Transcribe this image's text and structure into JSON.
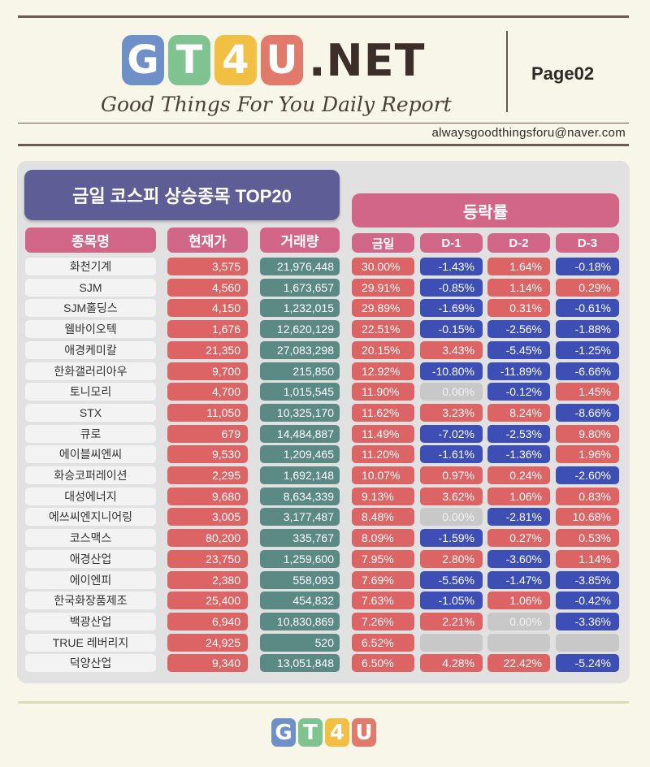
{
  "header": {
    "logo_letters": [
      {
        "char": "G",
        "color": "#6f8fc9"
      },
      {
        "char": "T",
        "color": "#7fc490"
      },
      {
        "char": "4",
        "color": "#f2bf45"
      },
      {
        "char": "U",
        "color": "#e27a6c"
      }
    ],
    "logo_suffix": ".NET",
    "subtitle": "Good Things For You Daily Report",
    "page_label": "Page02",
    "email": "alwaysgoodthingsforu@naver.com"
  },
  "table": {
    "title": "금일 코스피 상승종목 TOP20",
    "rate_header": "등락률",
    "columns": {
      "name": "종목명",
      "price": "현재가",
      "volume": "거래량",
      "d0": "금일",
      "d1": "D-1",
      "d2": "D-2",
      "d3": "D-3"
    },
    "rows": [
      {
        "name": "화천기계",
        "price": "3,575",
        "volume": "21,976,448",
        "d0": "30.00%",
        "d1": "-1.43%",
        "d2": "1.64%",
        "d3": "-0.18%"
      },
      {
        "name": "SJM",
        "price": "4,560",
        "volume": "1,673,657",
        "d0": "29.91%",
        "d1": "-0.85%",
        "d2": "1.14%",
        "d3": "0.29%"
      },
      {
        "name": "SJM홀딩스",
        "price": "4,150",
        "volume": "1,232,015",
        "d0": "29.89%",
        "d1": "-1.69%",
        "d2": "0.31%",
        "d3": "-0.61%"
      },
      {
        "name": "웰바이오텍",
        "price": "1,676",
        "volume": "12,620,129",
        "d0": "22.51%",
        "d1": "-0.15%",
        "d2": "-2.56%",
        "d3": "-1.88%"
      },
      {
        "name": "애경케미칼",
        "price": "21,350",
        "volume": "27,083,298",
        "d0": "20.15%",
        "d1": "3.43%",
        "d2": "-5.45%",
        "d3": "-1.25%"
      },
      {
        "name": "한화갤러리아우",
        "price": "9,700",
        "volume": "215,850",
        "d0": "12.92%",
        "d1": "-10.80%",
        "d2": "-11.89%",
        "d3": "-6.66%"
      },
      {
        "name": "토니모리",
        "price": "4,700",
        "volume": "1,015,545",
        "d0": "11.90%",
        "d1": "0.00%",
        "d2": "-0.12%",
        "d3": "1.45%"
      },
      {
        "name": "STX",
        "price": "11,050",
        "volume": "10,325,170",
        "d0": "11.62%",
        "d1": "3.23%",
        "d2": "8.24%",
        "d3": "-8.66%"
      },
      {
        "name": "큐로",
        "price": "679",
        "volume": "14,484,887",
        "d0": "11.49%",
        "d1": "-7.02%",
        "d2": "-2.53%",
        "d3": "9.80%"
      },
      {
        "name": "에이블씨엔씨",
        "price": "9,530",
        "volume": "1,209,465",
        "d0": "11.20%",
        "d1": "-1.61%",
        "d2": "-1.36%",
        "d3": "1.96%"
      },
      {
        "name": "화승코퍼레이션",
        "price": "2,295",
        "volume": "1,692,148",
        "d0": "10.07%",
        "d1": "0.97%",
        "d2": "0.24%",
        "d3": "-2.60%"
      },
      {
        "name": "대성에너지",
        "price": "9,680",
        "volume": "8,634,339",
        "d0": "9.13%",
        "d1": "3.62%",
        "d2": "1.06%",
        "d3": "0.83%"
      },
      {
        "name": "에쓰씨엔지니어링",
        "price": "3,005",
        "volume": "3,177,487",
        "d0": "8.48%",
        "d1": "0.00%",
        "d2": "-2.81%",
        "d3": "10.68%"
      },
      {
        "name": "코스맥스",
        "price": "80,200",
        "volume": "335,767",
        "d0": "8.09%",
        "d1": "-1.59%",
        "d2": "0.27%",
        "d3": "0.53%"
      },
      {
        "name": "애경산업",
        "price": "23,750",
        "volume": "1,259,600",
        "d0": "7.95%",
        "d1": "2.80%",
        "d2": "-3.60%",
        "d3": "1.14%"
      },
      {
        "name": "에이엔피",
        "price": "2,380",
        "volume": "558,093",
        "d0": "7.69%",
        "d1": "-5.56%",
        "d2": "-1.47%",
        "d3": "-3.85%"
      },
      {
        "name": "한국화장품제조",
        "price": "25,400",
        "volume": "454,832",
        "d0": "7.63%",
        "d1": "-1.05%",
        "d2": "1.06%",
        "d3": "-0.42%"
      },
      {
        "name": "백광산업",
        "price": "6,940",
        "volume": "10,830,869",
        "d0": "7.26%",
        "d1": "2.21%",
        "d2": "0.00%",
        "d3": "-3.36%"
      },
      {
        "name": "TRUE 레버리지",
        "price": "24,925",
        "volume": "520",
        "d0": "6.52%",
        "d1": "",
        "d2": "",
        "d3": ""
      },
      {
        "name": "덕양산업",
        "price": "9,340",
        "volume": "13,051,848",
        "d0": "6.50%",
        "d1": "4.28%",
        "d2": "22.42%",
        "d3": "-5.24%"
      }
    ]
  },
  "colors": {
    "up": "#dd6464",
    "down": "#3d4fb5",
    "zero": "#c8c8c8",
    "volume": "#5b8a84",
    "header_pink": "#d16688",
    "title_purple": "#5f5d95"
  },
  "footer": {
    "logo_letters": [
      {
        "char": "G",
        "color": "#6f8fc9"
      },
      {
        "char": "T",
        "color": "#7fc490"
      },
      {
        "char": "4",
        "color": "#f2bf45"
      },
      {
        "char": "U",
        "color": "#e27a6c"
      }
    ]
  }
}
